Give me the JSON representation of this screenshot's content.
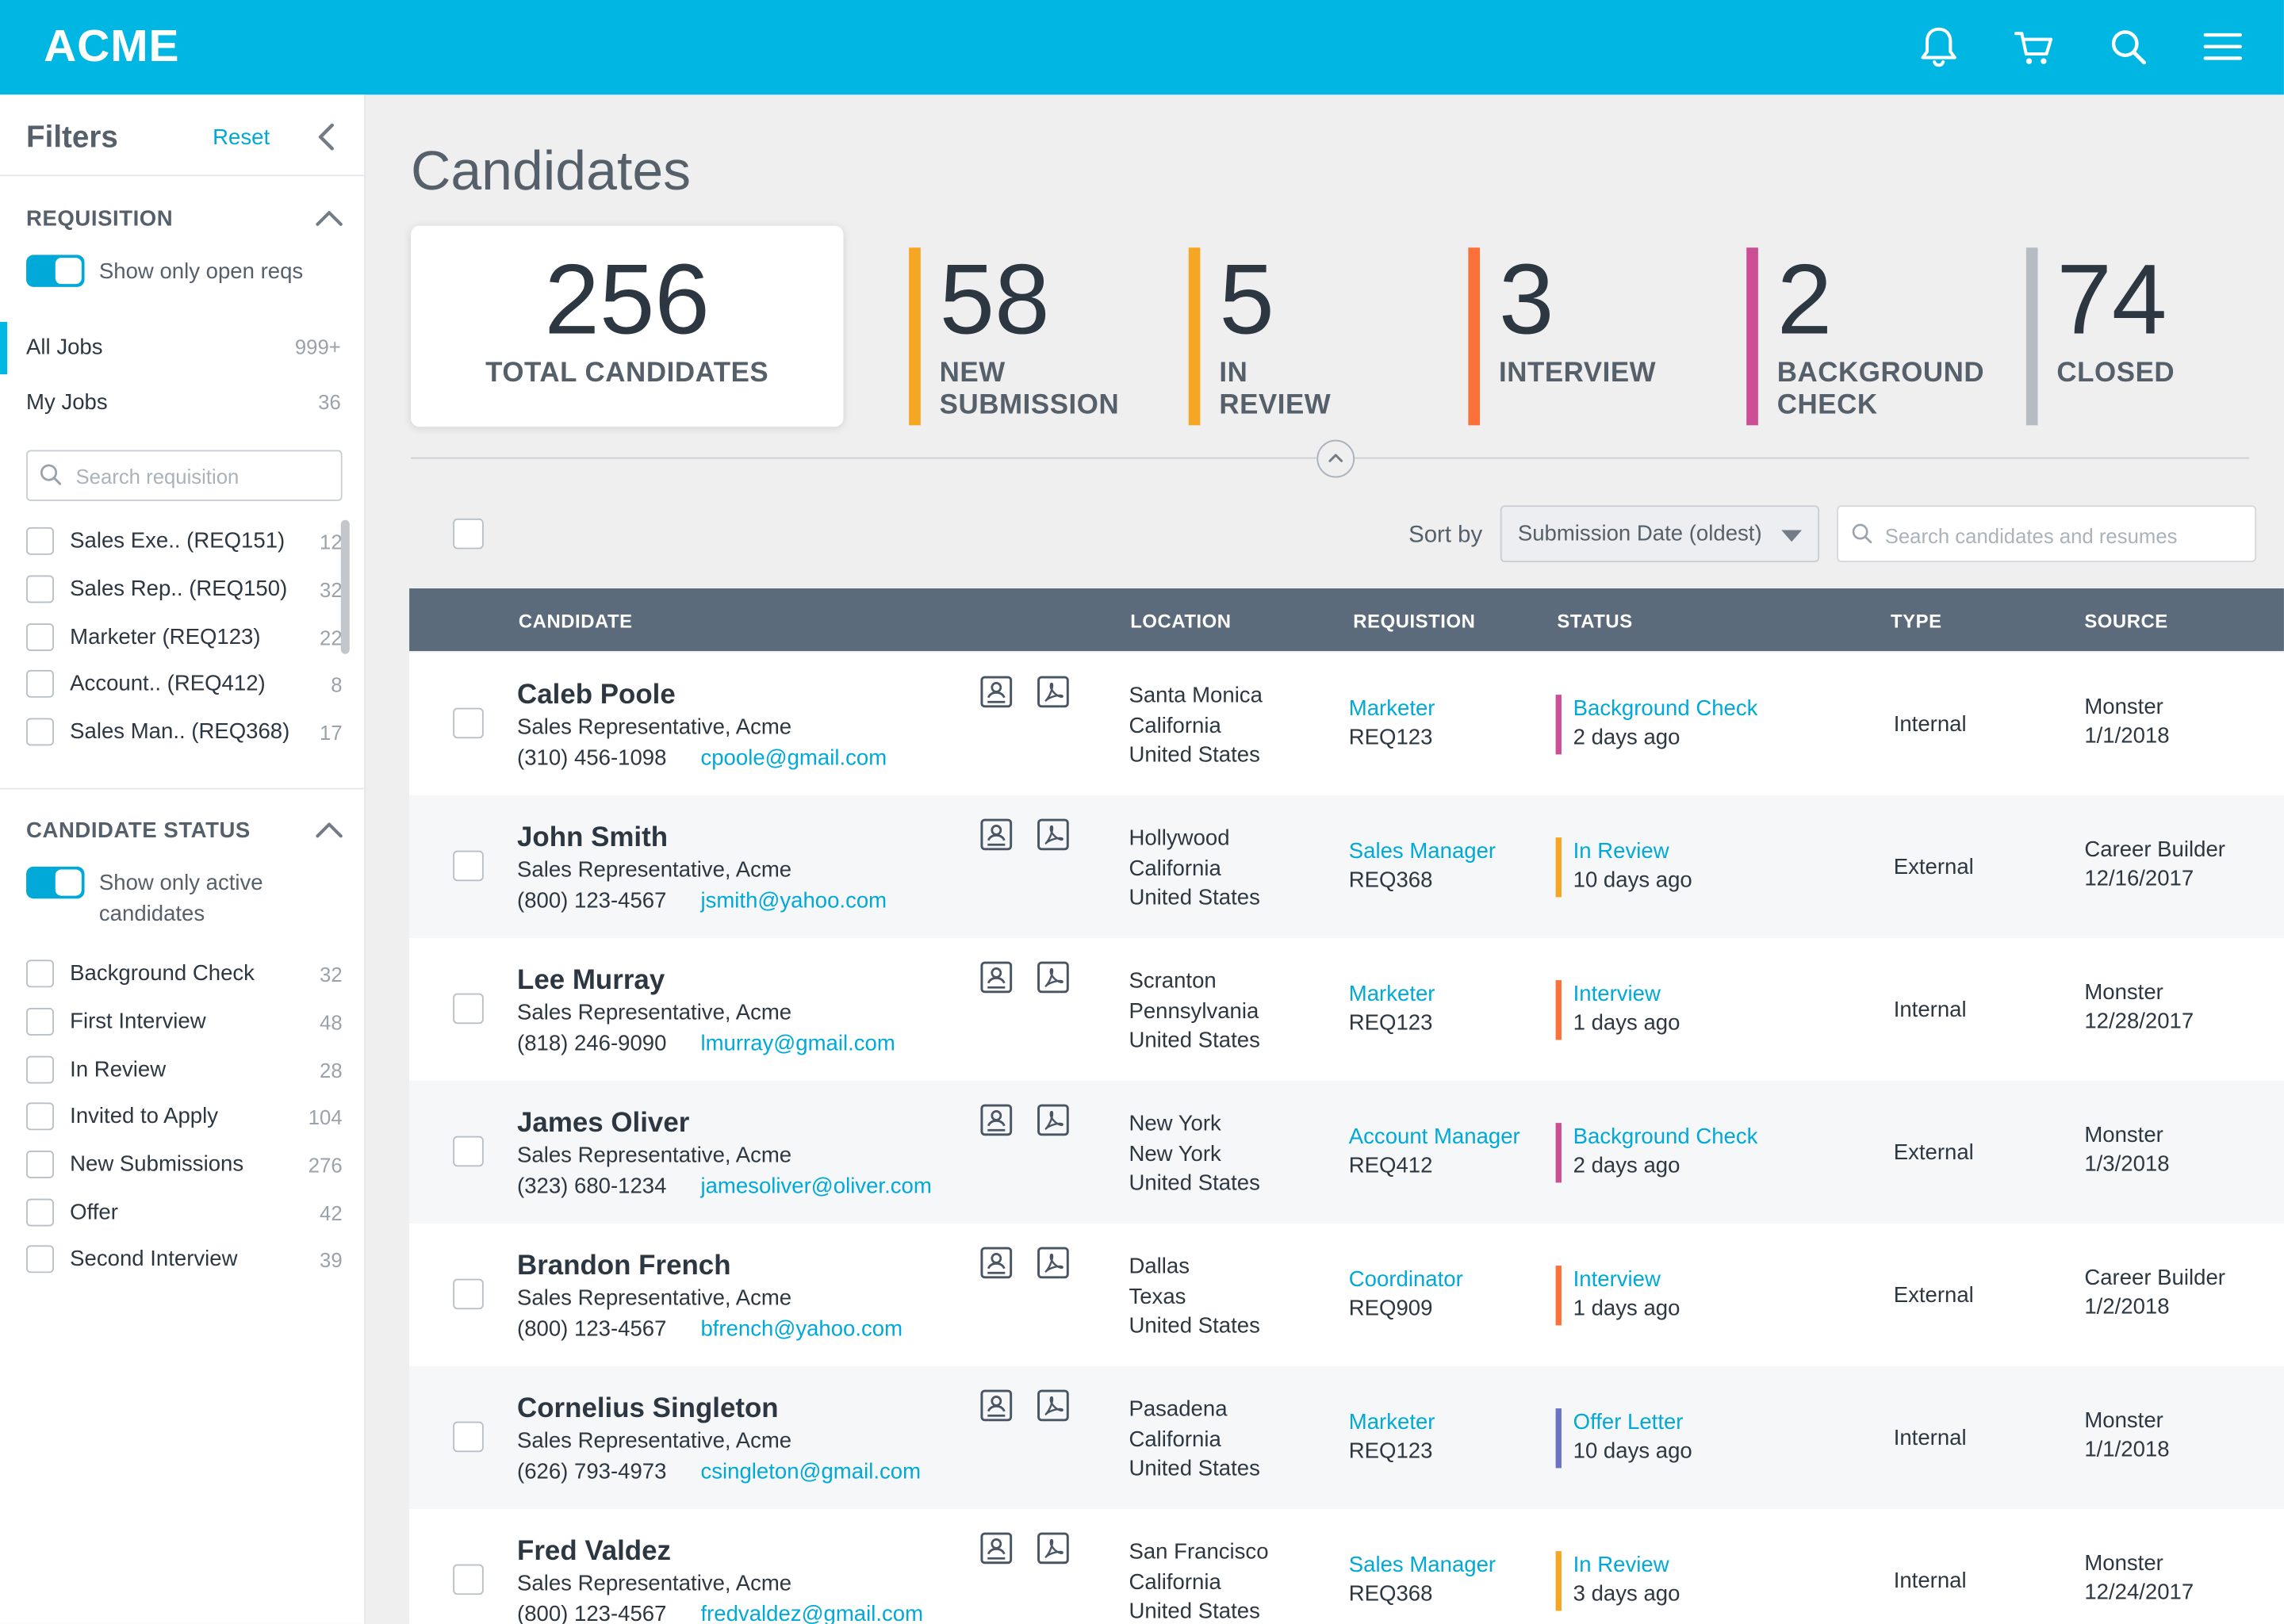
{
  "app": {
    "logo": "ACME"
  },
  "top_icons": [
    "bell-icon",
    "cart-icon",
    "search-icon",
    "menu-icon"
  ],
  "sidebar": {
    "title": "Filters",
    "reset": "Reset",
    "requisition": {
      "title": "REQUISITION",
      "toggle_label": "Show only open reqs",
      "jobs": [
        {
          "label": "All Jobs",
          "count": "999+"
        },
        {
          "label": "My Jobs",
          "count": "36"
        }
      ],
      "search_placeholder": "Search requisition",
      "items": [
        {
          "label": "Sales Exe.. (REQ151)",
          "count": "12"
        },
        {
          "label": "Sales Rep.. (REQ150)",
          "count": "32"
        },
        {
          "label": "Marketer (REQ123)",
          "count": "22"
        },
        {
          "label": "Account.. (REQ412)",
          "count": "8"
        },
        {
          "label": "Sales Man.. (REQ368)",
          "count": "17"
        }
      ]
    },
    "candidate_status": {
      "title": "CANDIDATE STATUS",
      "toggle_label_1": "Show only active",
      "toggle_label_2": "candidates",
      "items": [
        {
          "label": "Background Check",
          "count": "32"
        },
        {
          "label": "First Interview",
          "count": "48"
        },
        {
          "label": "In Review",
          "count": "28"
        },
        {
          "label": "Invited to Apply",
          "count": "104"
        },
        {
          "label": "New Submissions",
          "count": "276"
        },
        {
          "label": "Offer",
          "count": "42"
        },
        {
          "label": "Second Interview",
          "count": "39"
        }
      ]
    }
  },
  "main": {
    "title": "Candidates",
    "total": {
      "value": "256",
      "label": "TOTAL CANDIDATES"
    },
    "stats": [
      {
        "value": "58",
        "line1": "NEW",
        "line2": "SUBMISSION",
        "color": "#f5a623"
      },
      {
        "value": "5",
        "line1": "IN REVIEW",
        "line2": "",
        "color": "#f5a623"
      },
      {
        "value": "3",
        "line1": "INTERVIEW",
        "line2": "",
        "color": "#fa7139"
      },
      {
        "value": "2",
        "line1": "BACKGROUND",
        "line2": "CHECK",
        "color": "#cc4f96"
      },
      {
        "value": "74",
        "line1": "CLOSED",
        "line2": "",
        "color": "#b5bcc4"
      }
    ],
    "sort_label": "Sort by",
    "sort_value": "Submission Date (oldest)",
    "search_placeholder": "Search candidates and resumes",
    "table": {
      "headers": {
        "candidate": "CANDIDATE",
        "location": "LOCATION",
        "requisition": "REQUISTION",
        "status": "STATUS",
        "type": "TYPE",
        "source": "SOURCE"
      },
      "rows": [
        {
          "name": "Caleb Poole",
          "title": "Sales Representative, Acme",
          "phone": "(310) 456-1098",
          "email": "cpoole@gmail.com",
          "city": "Santa Monica",
          "state": "California",
          "country": "United States",
          "req_role": "Marketer",
          "req_id": "REQ123",
          "status": "Background Check",
          "ago": "2 days ago",
          "status_color": "#cc4f96",
          "type": "Internal",
          "source": "Monster",
          "source_date": "1/1/2018"
        },
        {
          "name": "John Smith",
          "title": "Sales Representative, Acme",
          "phone": "(800) 123-4567",
          "email": "jsmith@yahoo.com",
          "city": "Hollywood",
          "state": "California",
          "country": "United States",
          "req_role": "Sales Manager",
          "req_id": "REQ368",
          "status": "In Review",
          "ago": "10 days ago",
          "status_color": "#f5a623",
          "type": "External",
          "source": "Career Builder",
          "source_date": "12/16/2017"
        },
        {
          "name": "Lee Murray",
          "title": "Sales Representative, Acme",
          "phone": "(818) 246-9090",
          "email": "lmurray@gmail.com",
          "city": "Scranton",
          "state": "Pennsylvania",
          "country": "United States",
          "req_role": "Marketer",
          "req_id": "REQ123",
          "status": "Interview",
          "ago": "1 days ago",
          "status_color": "#fa7139",
          "type": "Internal",
          "source": "Monster",
          "source_date": "12/28/2017"
        },
        {
          "name": "James Oliver",
          "title": "Sales Representative, Acme",
          "phone": "(323) 680-1234",
          "email": "jamesoliver@oliver.com",
          "city": "New York",
          "state": "New York",
          "country": "United States",
          "req_role": "Account Manager",
          "req_id": "REQ412",
          "status": "Background Check",
          "ago": "2 days ago",
          "status_color": "#cc4f96",
          "type": "External",
          "source": "Monster",
          "source_date": "1/3/2018"
        },
        {
          "name": "Brandon French",
          "title": "Sales Representative, Acme",
          "phone": "(800) 123-4567",
          "email": "bfrench@yahoo.com",
          "city": "Dallas",
          "state": "Texas",
          "country": "United States",
          "req_role": "Coordinator",
          "req_id": "REQ909",
          "status": "Interview",
          "ago": "1 days ago",
          "status_color": "#fa7139",
          "type": "External",
          "source": "Career Builder",
          "source_date": "1/2/2018"
        },
        {
          "name": "Cornelius Singleton",
          "title": "Sales Representative, Acme",
          "phone": "(626) 793-4973",
          "email": "csingleton@gmail.com",
          "city": "Pasadena",
          "state": "California",
          "country": "United States",
          "req_role": "Marketer",
          "req_id": "REQ123",
          "status": "Offer Letter",
          "ago": "10 days ago",
          "status_color": "#6a73c4",
          "type": "Internal",
          "source": "Monster",
          "source_date": "1/1/2018"
        },
        {
          "name": "Fred Valdez",
          "title": "Sales Representative, Acme",
          "phone": "(800) 123-4567",
          "email": "fredvaldez@gmail.com",
          "city": "San Francisco",
          "state": "California",
          "country": "United States",
          "req_role": "Sales Manager",
          "req_id": "REQ368",
          "status": "In Review",
          "ago": "3 days ago",
          "status_color": "#f5a623",
          "type": "Internal",
          "source": "Monster",
          "source_date": "12/24/2017"
        }
      ]
    }
  }
}
